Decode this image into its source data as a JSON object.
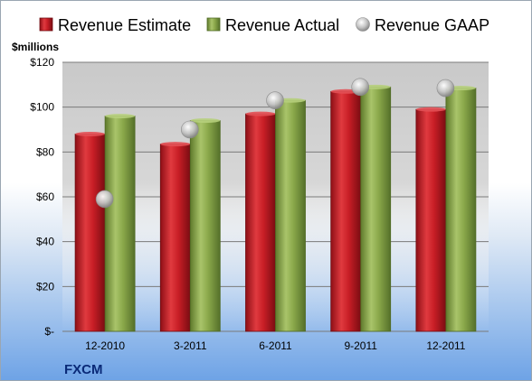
{
  "chart_data": {
    "type": "bar",
    "ticker": "FXCM",
    "unit_label": "$millions",
    "categories": [
      "12-2010",
      "3-2011",
      "6-2011",
      "9-2011",
      "12-2011"
    ],
    "series": [
      {
        "name": "Revenue Estimate",
        "type": "bar",
        "color": "#cc1f28",
        "values": [
          88,
          83.5,
          97,
          107,
          99
        ]
      },
      {
        "name": "Revenue Actual",
        "type": "bar",
        "color": "#8aa84a",
        "values": [
          96,
          94,
          103,
          109,
          108.5
        ]
      },
      {
        "name": "Revenue GAAP",
        "type": "scatter",
        "color": "#c8c8c8",
        "values": [
          59,
          90,
          103,
          109,
          108.5
        ]
      }
    ],
    "ylim": [
      0,
      120
    ],
    "y_ticks": [
      0,
      20,
      40,
      60,
      80,
      100,
      120
    ],
    "y_tick_labels": [
      "$-",
      "$20",
      "$40",
      "$60",
      "$80",
      "$100",
      "$120"
    ],
    "grid": true,
    "legend_position": "top"
  }
}
